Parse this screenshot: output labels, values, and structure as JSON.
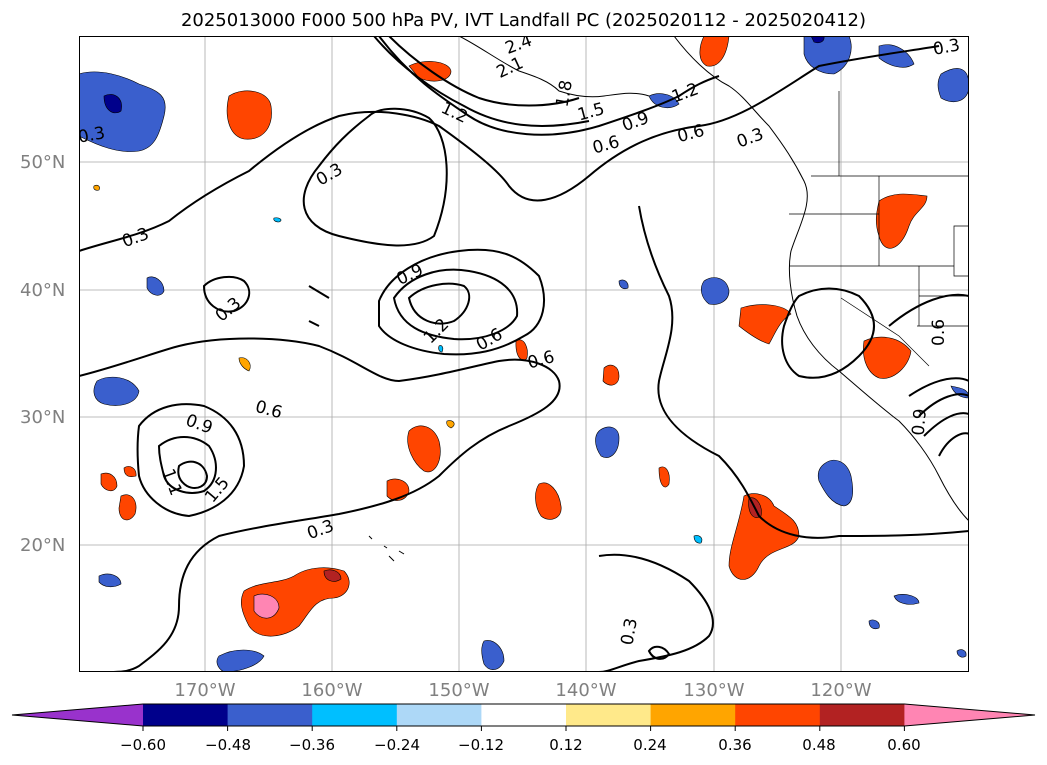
{
  "title": "2025013000 F000 500 hPa PV, IVT Landfall PC (2025020112 - 2025020412)",
  "map": {
    "lat_labels": [
      "50°N",
      "40°N",
      "30°N",
      "20°N"
    ],
    "lon_labels": [
      "170°W",
      "160°W",
      "150°W",
      "140°W",
      "130°W",
      "120°W"
    ],
    "grid_color": "#a9a9a9",
    "land_color": "#ffffff",
    "coast_color": "#000000"
  },
  "contour_labels": [
    "2.4",
    "2.1",
    "1.8",
    "1.5",
    "1.2",
    "0.9",
    "0.6",
    "0.3",
    "0.3",
    "0.3",
    "0.3",
    "0.9",
    "1.2",
    "0.6",
    "0.6",
    "0.3",
    "0.6",
    "0.9",
    "1.5",
    "0.3",
    "0.3",
    "0.6",
    "0.9",
    "0.6",
    "1.1",
    "1.2",
    "0.3"
  ],
  "colorbar": {
    "ticks": [
      "−0.60",
      "−0.48",
      "−0.36",
      "−0.24",
      "−0.12",
      "0.12",
      "0.24",
      "0.36",
      "0.48",
      "0.60"
    ],
    "colors": [
      "#9932cc",
      "#00008b",
      "#3a5fcd",
      "#00bfff",
      "#add8f7",
      "#ffffff",
      "#ffe98a",
      "#ffa500",
      "#ff4500",
      "#b22222",
      "#ff85b3"
    ]
  }
}
